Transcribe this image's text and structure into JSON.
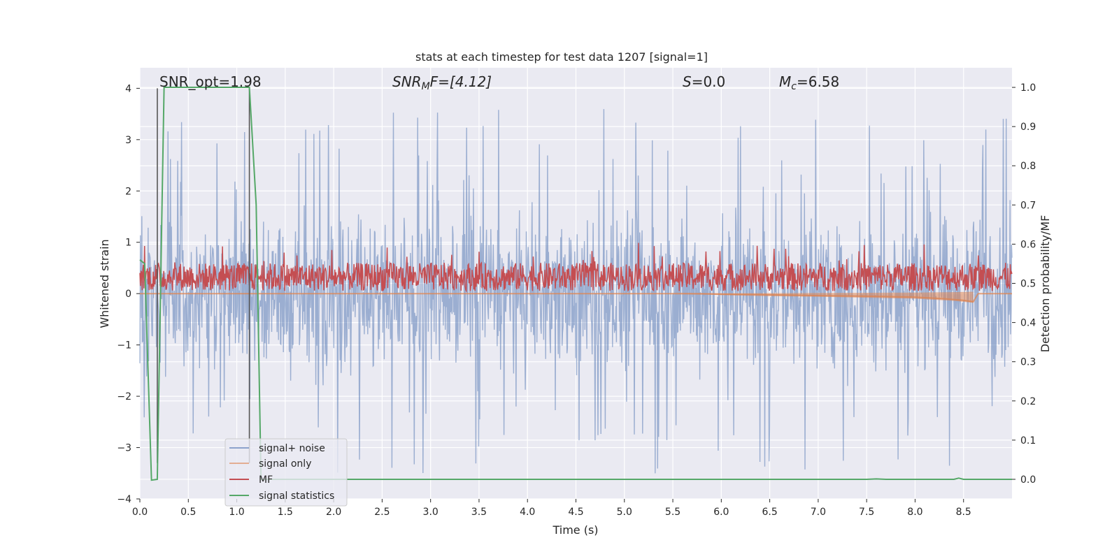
{
  "chart_data": {
    "type": "line",
    "title": "stats at each timestep for test data 1207 [signal=1]",
    "xlabel": "Time (s)",
    "ylabel": "Whitened strain",
    "ylabel_right": "Detection probability/MF",
    "xlim": [
      0.0,
      9.0
    ],
    "ylim": [
      -4.0,
      4.4
    ],
    "ylim_right": [
      -0.05,
      1.05
    ],
    "x_ticks": [
      0.0,
      0.5,
      1.0,
      1.5,
      2.0,
      2.5,
      3.0,
      3.5,
      4.0,
      4.5,
      5.0,
      5.5,
      6.0,
      6.5,
      7.0,
      7.5,
      8.0,
      8.5
    ],
    "x_tick_labels": [
      "0.0",
      "0.5",
      "1.0",
      "1.5",
      "2.0",
      "2.5",
      "3.0",
      "3.5",
      "4.0",
      "4.5",
      "5.0",
      "5.5",
      "6.0",
      "6.5",
      "7.0",
      "7.5",
      "8.0",
      "8.5"
    ],
    "y_ticks": [
      -4,
      -3,
      -2,
      -1,
      0,
      1,
      2,
      3,
      4
    ],
    "y_tick_labels": [
      "−4",
      "−3",
      "−2",
      "−1",
      "0",
      "1",
      "2",
      "3",
      "4"
    ],
    "y_right_ticks": [
      0.0,
      0.1,
      0.2,
      0.3,
      0.4,
      0.5,
      0.6,
      0.7,
      0.8,
      0.9,
      1.0
    ],
    "y_right_tick_labels": [
      "0.0",
      "0.1",
      "0.2",
      "0.3",
      "0.4",
      "0.5",
      "0.6",
      "0.7",
      "0.8",
      "0.9",
      "1.0"
    ],
    "grid": true,
    "legend_position": "lower-left",
    "annotations": {
      "snr_opt": "SNR_opt=1.98",
      "snr_mf_symbol": "SNR",
      "snr_mf_sub": "M",
      "snr_mf_rest": "F=[4.12]",
      "s_symbol": "S",
      "s_rest": "=0.0",
      "mc_symbol": "M",
      "mc_sub": "c",
      "mc_rest": "=6.58"
    },
    "vertical_markers_x": [
      0.18,
      1.13
    ],
    "vertical_markers_color": "#555555",
    "series": [
      {
        "name": "signal+ noise",
        "color": "#4c72b0",
        "axis": "left",
        "kind": "noise-band",
        "x_range": [
          0.0,
          9.0
        ],
        "typical_max": 2.0,
        "typical_min": -2.0,
        "peak_max": 4.0,
        "peak_min": -3.7
      },
      {
        "name": "signal only",
        "color": "#dd8452",
        "axis": "left",
        "x": [
          0.0,
          5.5,
          6.0,
          6.5,
          7.0,
          7.5,
          8.0,
          8.3,
          8.5,
          8.6,
          8.65,
          9.0
        ],
        "y": [
          0.0,
          0.0,
          -0.01,
          -0.02,
          -0.04,
          -0.05,
          -0.07,
          -0.1,
          -0.13,
          -0.16,
          0.0,
          0.0
        ]
      },
      {
        "name": "MF",
        "color": "#c44e52",
        "axis": "left",
        "kind": "mf-band",
        "x_range": [
          0.0,
          9.0
        ],
        "typical_max": 0.6,
        "typical_min": 0.05,
        "peak_max": 1.0
      },
      {
        "name": "signal statistics",
        "color": "#55a868",
        "axis": "right",
        "x": [
          0.0,
          0.05,
          0.12,
          0.18,
          0.25,
          1.1,
          1.13,
          1.2,
          1.25,
          1.5,
          2.0,
          3.0,
          4.0,
          5.0,
          6.0,
          7.0,
          7.5,
          7.6,
          7.7,
          8.0,
          8.4,
          8.45,
          8.5,
          9.0
        ],
        "y": [
          0.56,
          0.55,
          -0.002,
          0.0,
          1.0,
          1.0,
          1.0,
          0.7,
          0.0,
          0.0,
          0.0,
          0.0,
          0.0,
          0.0,
          0.0,
          0.0,
          0.0,
          0.001,
          0.0,
          0.0,
          0.0,
          0.003,
          0.0,
          0.0
        ]
      }
    ]
  }
}
